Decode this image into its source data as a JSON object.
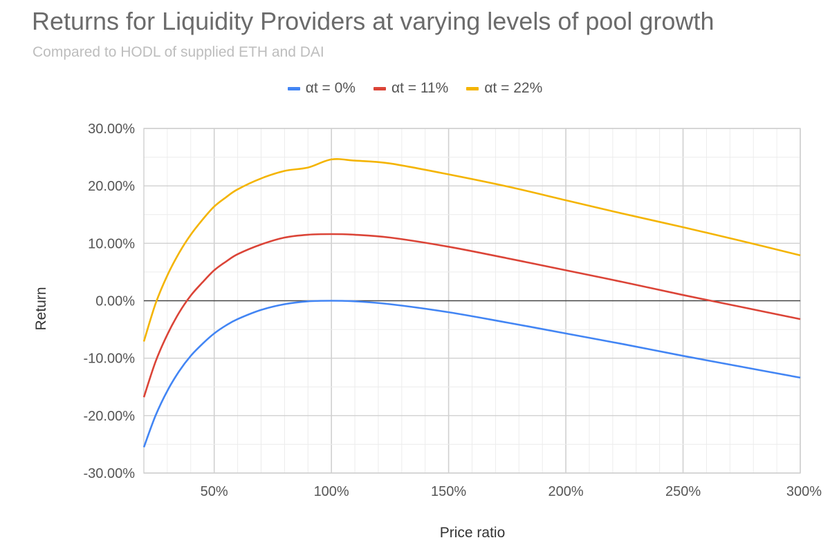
{
  "chart_data": {
    "type": "line",
    "title": "Returns for Liquidity Providers at varying levels of pool growth",
    "subtitle": "Compared to HODL of supplied ETH and DAI",
    "xlabel": "Price ratio",
    "ylabel": "Return",
    "xlim": [
      20,
      300
    ],
    "ylim": [
      -30,
      30
    ],
    "x_ticks": [
      {
        "value": 50,
        "label": "50%"
      },
      {
        "value": 100,
        "label": "100%"
      },
      {
        "value": 150,
        "label": "150%"
      },
      {
        "value": 200,
        "label": "200%"
      },
      {
        "value": 250,
        "label": "250%"
      },
      {
        "value": 300,
        "label": "300%"
      }
    ],
    "y_ticks": [
      {
        "value": 30,
        "label": "30.00%"
      },
      {
        "value": 20,
        "label": "20.00%"
      },
      {
        "value": 10,
        "label": "10.00%"
      },
      {
        "value": 0,
        "label": "0.00%"
      },
      {
        "value": -10,
        "label": "-10.00%"
      },
      {
        "value": -20,
        "label": "-20.00%"
      },
      {
        "value": -30,
        "label": "-30.00%"
      }
    ],
    "x": [
      20,
      25,
      30,
      35,
      40,
      45,
      50,
      55,
      60,
      70,
      80,
      90,
      100,
      110,
      125,
      150,
      175,
      200,
      225,
      250,
      275,
      300
    ],
    "series": [
      {
        "name": "αt = 0%",
        "color": "#4285f4",
        "values": [
          -25.5,
          -20.0,
          -15.7,
          -12.3,
          -9.6,
          -7.5,
          -5.7,
          -4.3,
          -3.2,
          -1.6,
          -0.6,
          -0.1,
          0.0,
          -0.1,
          -0.6,
          -2.0,
          -3.8,
          -5.7,
          -7.6,
          -9.6,
          -11.5,
          -13.4
        ]
      },
      {
        "name": "αt = 11%",
        "color": "#db4437",
        "values": [
          -16.8,
          -10.6,
          -5.9,
          -2.1,
          0.9,
          3.2,
          5.3,
          6.8,
          8.1,
          9.8,
          11.0,
          11.5,
          11.6,
          11.5,
          11.0,
          9.4,
          7.4,
          5.3,
          3.2,
          1.0,
          -1.1,
          -3.2
        ]
      },
      {
        "name": "αt = 22%",
        "color": "#f4b400",
        "values": [
          -7.1,
          -0.5,
          4.4,
          8.3,
          11.5,
          14.1,
          16.4,
          18.0,
          19.4,
          21.3,
          22.6,
          23.2,
          24.6,
          24.4,
          23.9,
          22.0,
          19.9,
          17.5,
          15.1,
          12.8,
          10.4,
          7.9
        ]
      }
    ],
    "legend_position": "top",
    "grid": true
  }
}
